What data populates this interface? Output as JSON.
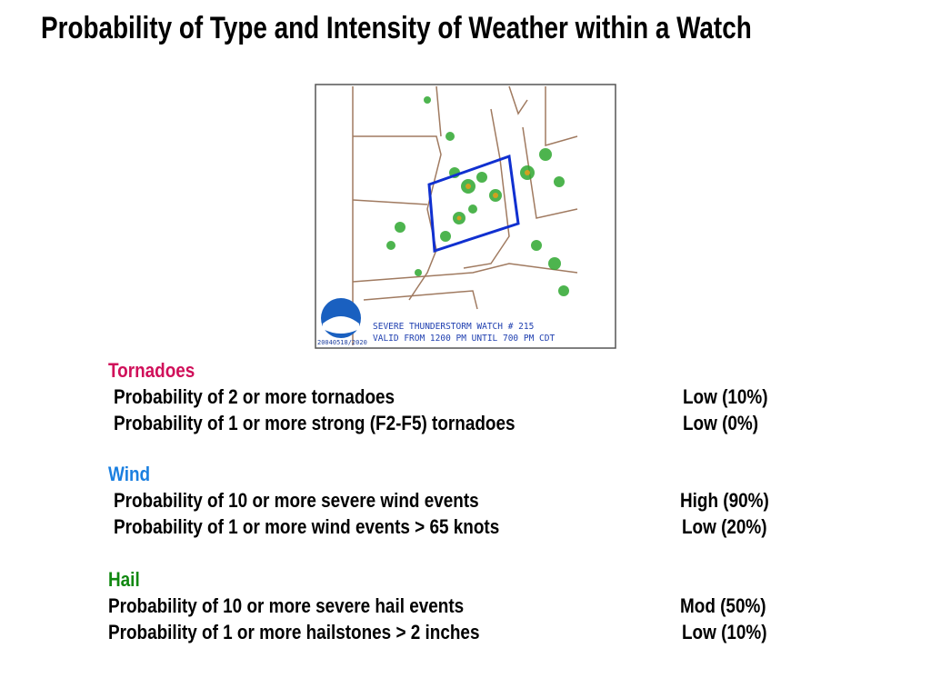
{
  "title": "Probability of Type and Intensity of Weather within a Watch",
  "map": {
    "stamp": "20040518/2020",
    "caption": [
      "SEVERE THUNDERSTORM WATCH # 215",
      "VALID FROM 1200 PM UNTIL  700 PM CDT"
    ]
  },
  "sections": [
    {
      "heading": "Tornadoes",
      "items": [
        {
          "label": "Probability of 2 or more tornadoes",
          "value": "Low (10%)"
        },
        {
          "label": "Probability of 1 or more strong (F2-F5) tornadoes",
          "value": "Low (0%)"
        }
      ]
    },
    {
      "heading": "Wind",
      "items": [
        {
          "label": "Probability of 10 or more severe wind events",
          "value": "High (90%)"
        },
        {
          "label": "Probability of 1 or more wind events > 65 knots",
          "value": "Low (20%)"
        }
      ]
    },
    {
      "heading": "Hail",
      "items": [
        {
          "label": "Probability of 10 or more severe hail events",
          "value": "Mod (50%)"
        },
        {
          "label": "Probability of 1 or more hailstones > 2 inches",
          "value": "Low (10%)"
        }
      ]
    }
  ]
}
